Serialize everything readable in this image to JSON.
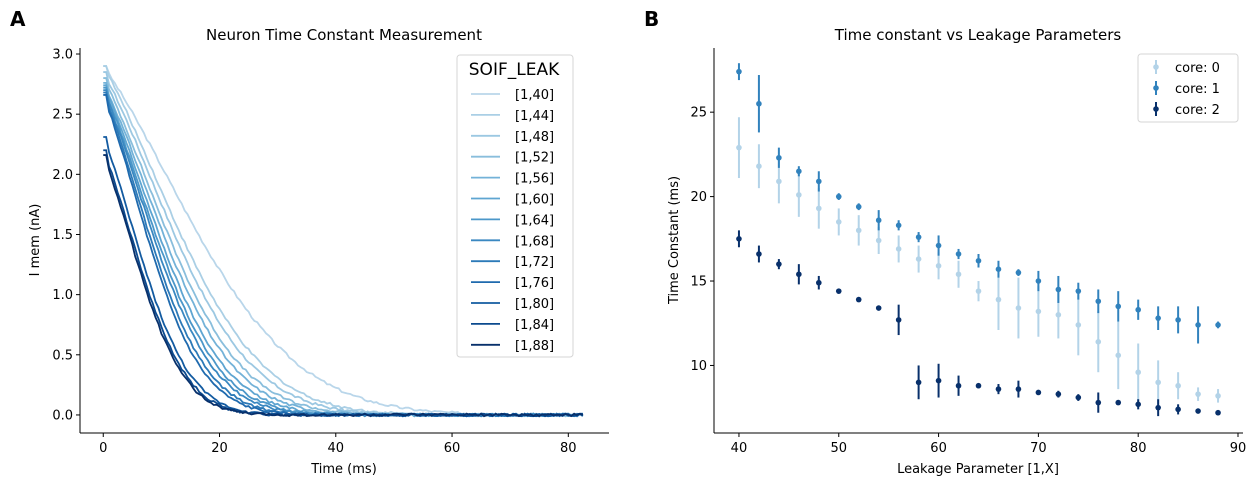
{
  "chart_data": [
    {
      "panel_label": "A",
      "type": "line",
      "title": "Neuron Time Constant Measurement",
      "xlabel": "Time (ms)",
      "ylabel": "I mem (nA)",
      "xlim": [
        -4,
        87
      ],
      "ylim": [
        -0.15,
        3.05
      ],
      "xticks": [
        "0",
        "20",
        "40",
        "60",
        "80"
      ],
      "yticks": [
        "0.0",
        "0.5",
        "1.0",
        "1.5",
        "2.0",
        "2.5",
        "3.0"
      ],
      "grid": false,
      "legend": {
        "title": "SOIF_LEAK",
        "placement": "top-right"
      },
      "x_end": 82.5,
      "series": [
        {
          "name": "[1,40]",
          "leak": 40,
          "y0": 2.9,
          "color": "#b9d6ea"
        },
        {
          "name": "[1,44]",
          "leak": 44,
          "y0": 2.9,
          "color": "#aacfe5"
        },
        {
          "name": "[1,48]",
          "leak": 48,
          "y0": 2.85,
          "color": "#9cc8e2"
        },
        {
          "name": "[1,52]",
          "leak": 52,
          "y0": 2.8,
          "color": "#89bedc"
        },
        {
          "name": "[1,56]",
          "leak": 56,
          "y0": 2.76,
          "color": "#73b2d8"
        },
        {
          "name": "[1,60]",
          "leak": 60,
          "y0": 2.74,
          "color": "#5ea5d1"
        },
        {
          "name": "[1,64]",
          "leak": 64,
          "y0": 2.72,
          "color": "#4b97c9"
        },
        {
          "name": "[1,68]",
          "leak": 68,
          "y0": 2.7,
          "color": "#3a88c1"
        },
        {
          "name": "[1,72]",
          "leak": 72,
          "y0": 2.68,
          "color": "#2c7ab8"
        },
        {
          "name": "[1,76]",
          "leak": 76,
          "y0": 2.66,
          "color": "#1f6aae"
        },
        {
          "name": "[1,80]",
          "leak": 80,
          "y0": 2.31,
          "color": "#135ba1"
        },
        {
          "name": "[1,84]",
          "leak": 84,
          "y0": 2.2,
          "color": "#0b4a8e"
        },
        {
          "name": "[1,88]",
          "leak": 88,
          "y0": 2.16,
          "color": "#08306b"
        }
      ]
    },
    {
      "panel_label": "B",
      "type": "scatter",
      "title": "Time constant vs Leakage Parameters",
      "xlabel": "Leakage Parameter [1,X]",
      "ylabel": "Time Constant (ms)",
      "xlim": [
        37.5,
        90.5
      ],
      "ylim": [
        6.0,
        28.8
      ],
      "xticks": [
        "40",
        "50",
        "60",
        "70",
        "80",
        "90"
      ],
      "yticks": [
        "10",
        "15",
        "20",
        "25"
      ],
      "grid": false,
      "legend": {
        "placement": "top-right"
      },
      "x": [
        40,
        42,
        44,
        46,
        48,
        50,
        52,
        54,
        56,
        58,
        60,
        62,
        64,
        66,
        68,
        70,
        72,
        74,
        76,
        78,
        80,
        82,
        84,
        86,
        88
      ],
      "series": [
        {
          "name": "core: 0",
          "color": "#b3d3e8",
          "y": [
            22.9,
            21.8,
            20.9,
            20.1,
            19.3,
            18.5,
            18.0,
            17.4,
            16.9,
            16.3,
            15.9,
            15.4,
            14.4,
            13.9,
            13.4,
            13.2,
            13.0,
            12.4,
            11.4,
            10.6,
            9.6,
            9.0,
            8.8,
            8.3,
            8.2
          ],
          "err": [
            1.8,
            1.3,
            1.3,
            1.3,
            1.2,
            0.8,
            0.9,
            0.8,
            0.8,
            0.8,
            0.8,
            0.8,
            0.6,
            1.8,
            1.8,
            1.5,
            1.4,
            1.8,
            1.8,
            2.0,
            1.7,
            1.3,
            0.8,
            0.4,
            0.4
          ]
        },
        {
          "name": "core: 1",
          "color": "#3182bd",
          "y": [
            27.4,
            25.5,
            22.3,
            21.5,
            20.9,
            20.0,
            19.4,
            18.6,
            18.3,
            17.6,
            17.1,
            16.6,
            16.2,
            15.7,
            15.5,
            15.0,
            14.5,
            14.4,
            13.8,
            13.5,
            13.3,
            12.8,
            12.7,
            12.4,
            12.4
          ],
          "err": [
            0.5,
            1.7,
            0.6,
            0.3,
            0.6,
            0.2,
            0.2,
            0.6,
            0.3,
            0.3,
            0.6,
            0.3,
            0.4,
            0.5,
            0.2,
            0.6,
            0.8,
            0.5,
            0.7,
            0.9,
            0.6,
            0.7,
            0.8,
            1.1,
            0.2
          ]
        },
        {
          "name": "core: 2",
          "color": "#08306b",
          "x": [
            40,
            42,
            44,
            46,
            48,
            50,
            52,
            54,
            56,
            58,
            60,
            62,
            64,
            66,
            68,
            70,
            72,
            74,
            76,
            78,
            80,
            82,
            84,
            86,
            88
          ],
          "y": [
            17.5,
            16.6,
            16.0,
            15.4,
            14.9,
            14.4,
            13.9,
            13.4,
            12.7,
            9.0,
            9.1,
            8.8,
            8.8,
            8.6,
            8.6,
            8.4,
            8.3,
            8.1,
            7.8,
            7.8,
            7.7,
            7.5,
            7.4,
            7.3,
            7.2
          ],
          "err": [
            0.5,
            0.5,
            0.3,
            0.6,
            0.4,
            0.1,
            0.1,
            0.1,
            0.9,
            1.0,
            1.0,
            0.6,
            0.1,
            0.3,
            0.5,
            0.1,
            0.2,
            0.2,
            0.6,
            0.1,
            0.3,
            0.5,
            0.3,
            0.1,
            0.1
          ]
        }
      ]
    }
  ]
}
